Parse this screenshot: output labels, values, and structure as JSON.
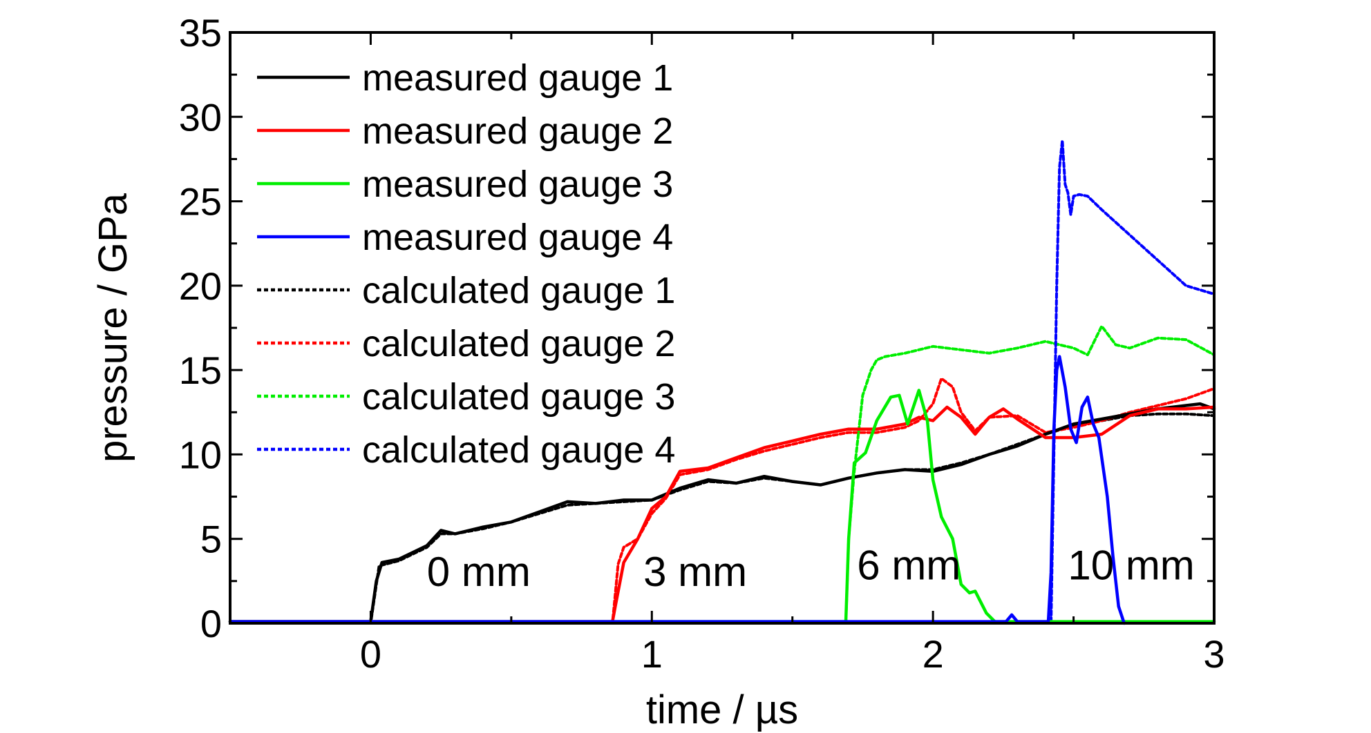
{
  "chart_data": {
    "type": "line",
    "xlabel": "time / µs",
    "ylabel": "pressure / GPa",
    "xlim": [
      -0.5,
      3
    ],
    "ylim": [
      0,
      35
    ],
    "x_ticks": [
      "0",
      "1",
      "2",
      "3"
    ],
    "y_ticks": [
      "0",
      "5",
      "10",
      "15",
      "20",
      "25",
      "30",
      "35"
    ],
    "legend_position": "top-left",
    "annotations": [
      {
        "text": "0 mm",
        "x": 0.2,
        "y": 2.2
      },
      {
        "text": "3 mm",
        "x": 0.97,
        "y": 2.2
      },
      {
        "text": "6 mm",
        "x": 1.73,
        "y": 2.6
      },
      {
        "text": "10 mm",
        "x": 2.48,
        "y": 2.6
      }
    ],
    "series": [
      {
        "name": "measured gauge 1",
        "color": "#000000",
        "style": "solid",
        "x": [
          -0.5,
          0.0,
          0.02,
          0.04,
          0.1,
          0.2,
          0.25,
          0.3,
          0.4,
          0.5,
          0.6,
          0.7,
          0.8,
          0.9,
          1.0,
          1.1,
          1.2,
          1.3,
          1.4,
          1.5,
          1.6,
          1.7,
          1.8,
          1.9,
          2.0,
          2.1,
          2.2,
          2.3,
          2.4,
          2.5,
          2.6,
          2.7,
          2.8,
          2.9,
          2.95,
          3.0
        ],
        "y": [
          0.1,
          0.1,
          2.5,
          3.6,
          3.8,
          4.6,
          5.5,
          5.3,
          5.7,
          6.0,
          6.6,
          7.2,
          7.1,
          7.3,
          7.3,
          8.0,
          8.5,
          8.3,
          8.7,
          8.4,
          8.2,
          8.6,
          8.9,
          9.1,
          9.0,
          9.4,
          10.0,
          10.5,
          11.2,
          11.8,
          12.1,
          12.4,
          12.7,
          12.9,
          13.0,
          12.7
        ]
      },
      {
        "name": "measured gauge 2",
        "color": "#ff0000",
        "style": "solid",
        "x": [
          -0.5,
          0.86,
          0.87,
          0.9,
          0.95,
          1.0,
          1.05,
          1.1,
          1.2,
          1.3,
          1.4,
          1.5,
          1.6,
          1.7,
          1.8,
          1.9,
          1.95,
          2.0,
          2.05,
          2.1,
          2.15,
          2.2,
          2.25,
          2.3,
          2.4,
          2.5,
          2.6,
          2.7,
          2.8,
          2.9,
          3.0
        ],
        "y": [
          0.1,
          0.1,
          1.0,
          3.6,
          5.0,
          6.8,
          7.5,
          9.0,
          9.2,
          9.8,
          10.4,
          10.8,
          11.2,
          11.5,
          11.5,
          11.8,
          12.2,
          12.0,
          12.8,
          12.2,
          11.2,
          12.2,
          12.7,
          12.1,
          11.0,
          11.0,
          11.2,
          12.3,
          12.7,
          12.7,
          12.8
        ]
      },
      {
        "name": "measured gauge 3",
        "color": "#00ee00",
        "style": "solid",
        "x": [
          -0.5,
          1.69,
          1.7,
          1.72,
          1.76,
          1.8,
          1.85,
          1.88,
          1.91,
          1.95,
          1.98,
          2.0,
          2.03,
          2.07,
          2.1,
          2.13,
          2.15,
          2.19,
          2.22,
          3.0
        ],
        "y": [
          0.1,
          0.1,
          5.0,
          9.5,
          10.1,
          12.0,
          13.4,
          13.5,
          11.8,
          13.8,
          12.0,
          8.5,
          6.3,
          5.0,
          2.3,
          1.8,
          1.9,
          0.6,
          0.1,
          0.1
        ],
        "x_end": 2.22
      },
      {
        "name": "measured gauge 4",
        "color": "#0000ff",
        "style": "solid",
        "x": [
          -0.5,
          2.26,
          2.28,
          2.3,
          2.41,
          2.42,
          2.43,
          2.44,
          2.45,
          2.47,
          2.49,
          2.51,
          2.53,
          2.55,
          2.57,
          2.59,
          2.62,
          2.64,
          2.66,
          2.68
        ],
        "y": [
          0.1,
          0.1,
          0.5,
          0.1,
          0.1,
          3.0,
          11.5,
          15.0,
          15.8,
          14.0,
          11.5,
          10.7,
          12.8,
          13.4,
          11.8,
          11.0,
          7.5,
          4.0,
          1.0,
          0.0
        ]
      },
      {
        "name": "calculated gauge 1",
        "color": "#000000",
        "style": "dotted",
        "x": [
          -0.5,
          0.0,
          0.03,
          0.1,
          0.2,
          0.25,
          0.3,
          0.4,
          0.5,
          0.6,
          0.7,
          0.8,
          0.9,
          1.0,
          1.1,
          1.2,
          1.3,
          1.4,
          1.5,
          1.6,
          1.7,
          1.8,
          1.9,
          2.0,
          2.1,
          2.2,
          2.3,
          2.4,
          2.5,
          2.6,
          2.7,
          2.8,
          2.9,
          3.0
        ],
        "y": [
          0.0,
          0.0,
          3.4,
          3.7,
          4.5,
          5.3,
          5.3,
          5.6,
          6.0,
          6.5,
          7.0,
          7.1,
          7.2,
          7.3,
          7.9,
          8.4,
          8.3,
          8.6,
          8.4,
          8.2,
          8.6,
          8.9,
          9.1,
          9.1,
          9.5,
          10.0,
          10.6,
          11.2,
          11.7,
          12.0,
          12.3,
          12.4,
          12.4,
          12.3
        ]
      },
      {
        "name": "calculated gauge 2",
        "color": "#ff0000",
        "style": "dotted",
        "x": [
          -0.5,
          0.86,
          0.88,
          0.9,
          0.95,
          1.0,
          1.05,
          1.1,
          1.2,
          1.3,
          1.4,
          1.5,
          1.6,
          1.7,
          1.8,
          1.9,
          1.95,
          2.0,
          2.03,
          2.07,
          2.1,
          2.15,
          2.2,
          2.3,
          2.4,
          2.5,
          2.6,
          2.7,
          2.8,
          2.9,
          3.0
        ],
        "y": [
          0.0,
          0.0,
          3.5,
          4.5,
          5.0,
          6.5,
          7.4,
          8.8,
          9.1,
          9.7,
          10.2,
          10.6,
          11.0,
          11.3,
          11.3,
          11.6,
          12.0,
          13.0,
          14.5,
          14.0,
          12.5,
          11.4,
          12.2,
          12.3,
          11.3,
          11.6,
          12.0,
          12.5,
          12.9,
          13.3,
          13.9
        ]
      },
      {
        "name": "calculated gauge 3",
        "color": "#00ee00",
        "style": "dotted",
        "x": [
          -0.5,
          1.69,
          1.7,
          1.72,
          1.75,
          1.78,
          1.8,
          1.83,
          1.9,
          2.0,
          2.1,
          2.2,
          2.3,
          2.4,
          2.45,
          2.5,
          2.55,
          2.6,
          2.65,
          2.7,
          2.8,
          2.9,
          3.0
        ],
        "y": [
          0.0,
          0.0,
          5.0,
          9.0,
          13.5,
          15.0,
          15.6,
          15.8,
          16.0,
          16.4,
          16.2,
          16.0,
          16.3,
          16.7,
          16.5,
          16.3,
          15.9,
          17.6,
          16.5,
          16.3,
          16.9,
          16.8,
          15.9
        ]
      },
      {
        "name": "calculated gauge 4",
        "color": "#0000ff",
        "style": "dotted",
        "x": [
          -0.5,
          2.42,
          2.43,
          2.44,
          2.45,
          2.46,
          2.47,
          2.48,
          2.49,
          2.5,
          2.52,
          2.55,
          2.6,
          2.7,
          2.8,
          2.9,
          3.0
        ],
        "y": [
          0.0,
          0.0,
          10.0,
          20.0,
          27.0,
          28.6,
          26.0,
          25.5,
          24.2,
          25.3,
          25.4,
          25.3,
          24.5,
          23.0,
          21.5,
          20.0,
          19.5
        ]
      }
    ]
  }
}
